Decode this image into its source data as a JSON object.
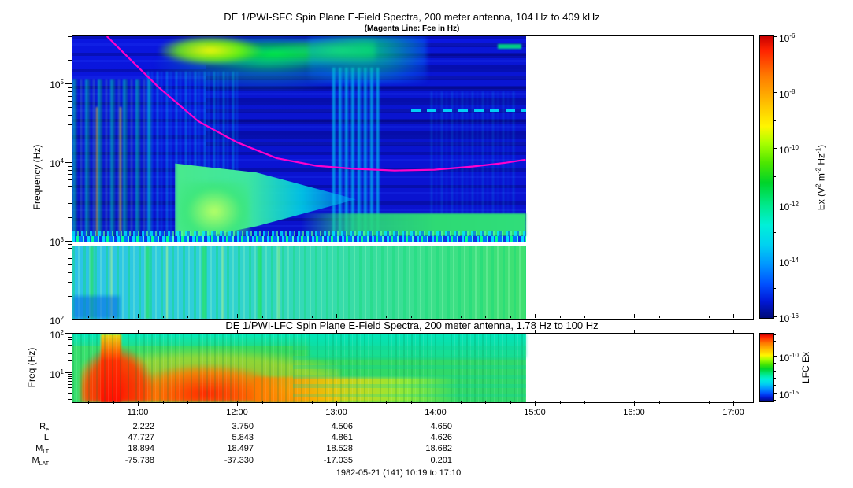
{
  "accent_colors": {
    "fce_line": "#ff00cc",
    "frame": "#000000"
  },
  "sfc": {
    "title": "DE 1/PWI-SFC  Spin Plane E-Field Spectra, 200 meter antenna, 104 Hz to 409 kHz",
    "subtitle": "(Magenta Line: Fce in Hz)",
    "ylabel": "Frequency (Hz)",
    "y_tick_exponents": [
      5,
      4,
      3,
      2
    ],
    "colorbar": {
      "tick_exponents": [
        -6,
        -8,
        -10,
        -12,
        -14,
        -16
      ],
      "label_segments": [
        [
          "t",
          "Ex (V"
        ],
        [
          "s",
          "2"
        ],
        [
          "t",
          " m"
        ],
        [
          "s",
          "-2"
        ],
        [
          "t",
          " Hz"
        ],
        [
          "s",
          "-1"
        ],
        [
          "t",
          ")"
        ]
      ]
    }
  },
  "lfc": {
    "title": "DE 1/PWI-LFC  Spin Plane E-Field Spectra, 200 meter antenna, 1.78 Hz to 100 Hz",
    "ylabel": "Freq (Hz)",
    "y_tick_exponents": [
      2,
      1
    ],
    "colorbar": {
      "tick_exponents": [
        -10,
        -15
      ],
      "label": "LFC Ex"
    }
  },
  "time_axis": {
    "tick_labels": [
      "11:00",
      "12:00",
      "13:00",
      "14:00",
      "15:00",
      "16:00",
      "17:00"
    ]
  },
  "ephemeris": {
    "rows": [
      {
        "name": "Re",
        "label": [
          [
            "t",
            "R"
          ],
          [
            "b",
            "e"
          ]
        ],
        "values": [
          "2.222",
          "3.750",
          "4.506",
          "4.650"
        ]
      },
      {
        "name": "L",
        "label": [
          [
            "t",
            "L"
          ]
        ],
        "values": [
          "47.727",
          "5.843",
          "4.861",
          "4.626"
        ]
      },
      {
        "name": "MLT",
        "label": [
          [
            "t",
            "M"
          ],
          [
            "b",
            "LT"
          ]
        ],
        "values": [
          "18.894",
          "18.497",
          "18.528",
          "18.682"
        ]
      },
      {
        "name": "MLAT",
        "label": [
          [
            "t",
            "M"
          ],
          [
            "b",
            "LAT"
          ]
        ],
        "values": [
          "-75.738",
          "-37.330",
          "-17.035",
          "0.201"
        ]
      }
    ],
    "footer": "1982-05-21 (141) 10:19 to 17:10"
  },
  "chart_data": [
    {
      "type": "heatmap",
      "instrument": "DE 1/PWI-SFC",
      "title": "DE 1/PWI-SFC  Spin Plane E-Field Spectra, 200 meter antenna, 104 Hz to 409 kHz",
      "subtitle": "(Magenta Line: Fce in Hz)",
      "ylabel": "Frequency (Hz)",
      "y_scale": "log",
      "y_range_hz": [
        104,
        409000
      ],
      "y_tick_labels": [
        "10^2",
        "10^3",
        "10^4",
        "10^5"
      ],
      "x_tick_labels": [
        "11:00",
        "12:00",
        "13:00",
        "14:00",
        "15:00",
        "16:00",
        "17:00"
      ],
      "x_range_time": [
        "10:20",
        "17:11"
      ],
      "data_coverage_time": [
        "10:20",
        "14:54"
      ],
      "white_gap_band_hz": [
        900,
        1050
      ],
      "colorbar": {
        "label": "Ex (V^2 m^-2 Hz^-1)",
        "scale": "log",
        "range": [
          1e-16,
          1e-06
        ],
        "tick_values": [
          "10^-6",
          "10^-8",
          "10^-10",
          "10^-12",
          "10^-14",
          "10^-16"
        ],
        "palette": "rainbow red-to-navy"
      },
      "overlay_line": {
        "name": "Fce (electron cyclotron frequency)",
        "color": "#ff00cc",
        "points_t_hours_vs_hz": [
          [
            10.68,
            409000
          ],
          [
            10.88,
            230000
          ],
          [
            11.2,
            92000
          ],
          [
            11.6,
            34000
          ],
          [
            11.99,
            18300
          ],
          [
            12.39,
            11500
          ],
          [
            12.79,
            9200
          ],
          [
            13.18,
            8400
          ],
          [
            13.58,
            8000
          ],
          [
            13.98,
            8200
          ],
          [
            14.37,
            9000
          ],
          [
            14.69,
            10000
          ],
          [
            14.9,
            11000
          ]
        ]
      },
      "features": [
        "intense green/yellow emission band (AKR) near 200-400 kHz from ~10:45 to ~12:40",
        "dark blue (low power) background above ~2 kHz after ~12:45",
        "bright cyan-green funnel-shaped emission 2-20 kHz tapering off near 12:45",
        "patchy green/cyan vertical bursts on left (10:20-11:30) across all frequencies",
        "broad green band below ~1 kHz rising after ~13:00",
        "horizontal white data-gap band just below 1 kHz",
        "no data (white) after ~14:54"
      ]
    },
    {
      "type": "heatmap",
      "instrument": "DE 1/PWI-LFC",
      "title": "DE 1/PWI-LFC  Spin Plane E-Field Spectra, 200 meter antenna, 1.78 Hz to 100 Hz",
      "ylabel": "Freq (Hz)",
      "y_scale": "log",
      "y_range_hz": [
        1.78,
        100
      ],
      "y_tick_labels": [
        "10^1",
        "10^2"
      ],
      "x_tick_labels": [
        "11:00",
        "12:00",
        "13:00",
        "14:00",
        "15:00",
        "16:00",
        "17:00"
      ],
      "data_coverage_time": [
        "10:20",
        "14:54"
      ],
      "colorbar": {
        "label": "LFC Ex",
        "scale": "log",
        "tick_values": [
          "10^-10",
          "10^-15"
        ],
        "palette": "rainbow red-to-navy"
      },
      "features": [
        "very intense red/orange emission below ~20 Hz from ~10:35 to ~12:45",
        "yellow fringe extending along lowest frequencies to ~13:30",
        "cyan band near 100 Hz across the pass",
        "uniform green moderate levels after ~13:00",
        "no data (white) after ~14:54"
      ]
    }
  ]
}
